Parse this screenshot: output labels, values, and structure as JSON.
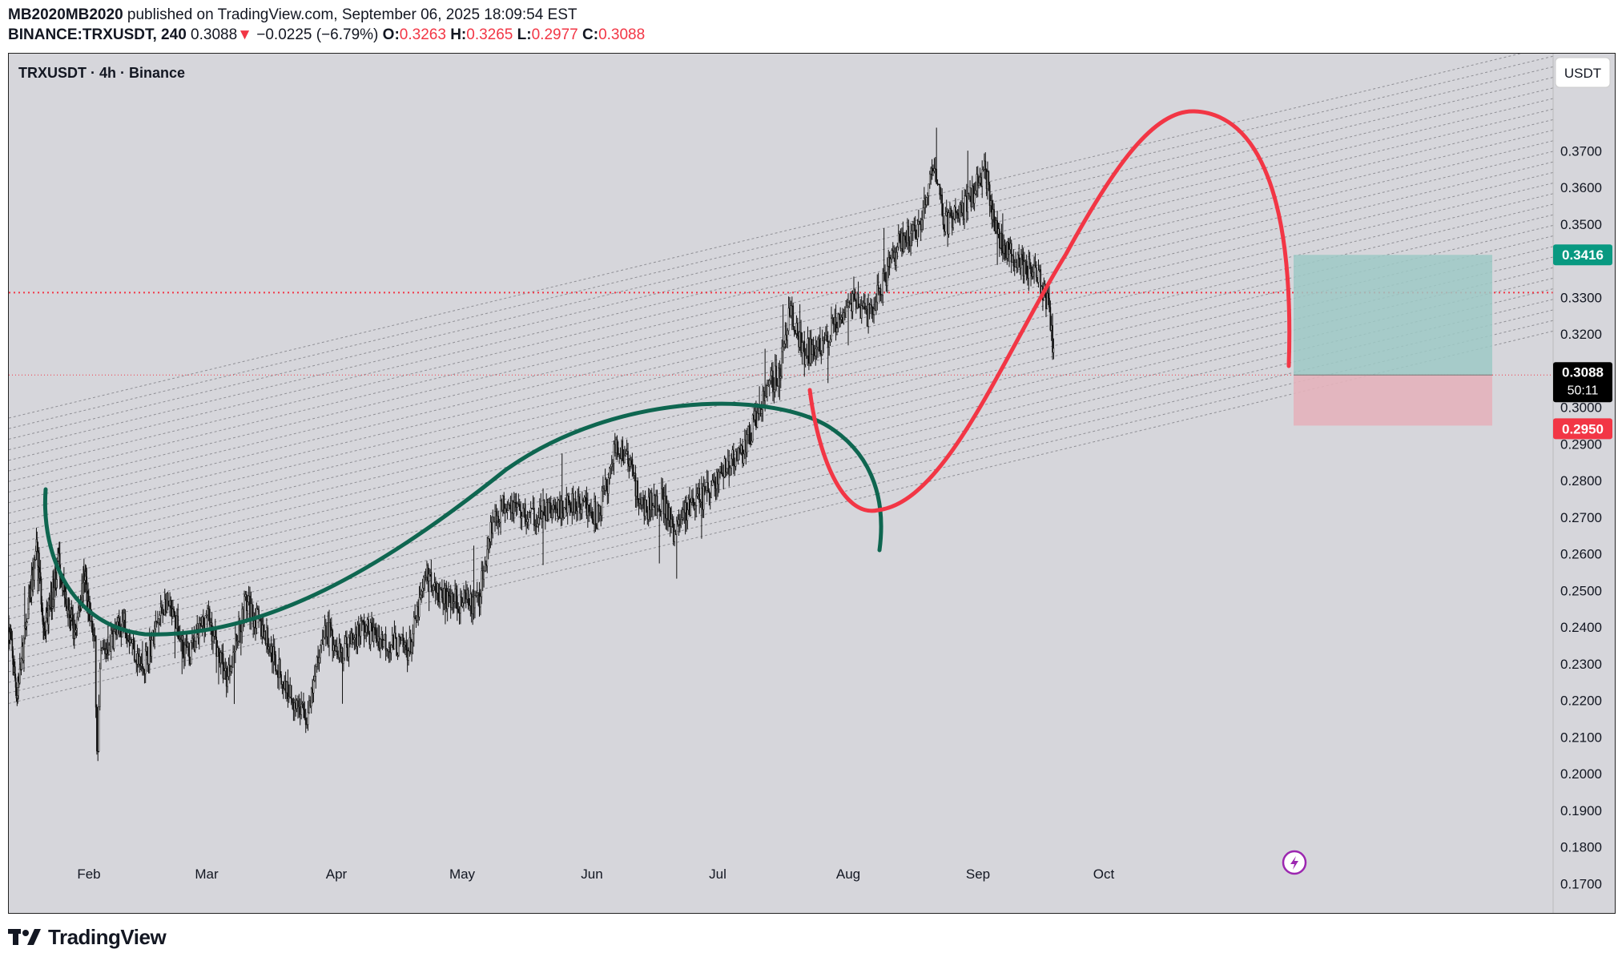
{
  "header": {
    "publisher": "MB2020MB2020",
    "published_text": "published on TradingView.com, September 06, 2025 18:09:54 EST",
    "symbol": "BINANCE:TRXUSDT, 240",
    "last": "0.3088",
    "change": "−0.0225 (−6.79%)",
    "o_label": "O:",
    "o_value": "0.3263",
    "h_label": "H:",
    "h_value": "0.3265",
    "l_label": "L:",
    "l_value": "0.2977",
    "c_label": "C:",
    "c_value": "0.3088",
    "down_glyph": "▼"
  },
  "legend": {
    "title": "TRXUSDT · 4h · Binance"
  },
  "currency_button": "USDT",
  "price_tags": {
    "target": "0.3416",
    "current": "0.3088",
    "countdown": "50:11",
    "stop": "0.2950"
  },
  "colors": {
    "background": "#d6d6db",
    "candles": "#111111",
    "channel": "#8f8f95",
    "green_curve": "#0e6650",
    "red_curve": "#f23645",
    "target_zone": "#9ec9c5",
    "stop_zone": "#e4b3bb",
    "tag_green": "#089981",
    "tag_red": "#f23645",
    "tag_black": "#000000",
    "lightning_badge": "#9c27b0"
  },
  "icons": {
    "brand": "tradingview-logo-icon",
    "alert": "lightning-icon"
  },
  "footer": {
    "brand": "TradingView"
  },
  "chart_data": {
    "type": "candlestick",
    "title": "TRXUSDT · 4h · Binance",
    "quote_currency": "USDT",
    "x_axis": {
      "tick_labels": [
        "Feb",
        "Mar",
        "Apr",
        "May",
        "Jun",
        "Jul",
        "Aug",
        "Sep",
        "Oct"
      ]
    },
    "y_axis": {
      "range": [
        0.162,
        0.3965
      ],
      "position": "right",
      "tick_labels": [
        "0.3700",
        "0.3600",
        "0.3500",
        "0.3400",
        "0.3300",
        "0.3200",
        "0.3100",
        "0.3000",
        "0.2900",
        "0.2800",
        "0.2700",
        "0.2600",
        "0.2500",
        "0.2400",
        "0.2300",
        "0.2200",
        "0.2100",
        "0.2000",
        "0.1900",
        "0.1800",
        "0.1700"
      ],
      "hidden_ticks": [
        "0.3400",
        "0.3100"
      ]
    },
    "price_anchors": [
      {
        "month": 0.0,
        "price": 0.24
      },
      {
        "month": 0.1,
        "price": 0.222
      },
      {
        "month": 0.25,
        "price": 0.245
      },
      {
        "month": 0.35,
        "price": 0.262
      },
      {
        "month": 0.45,
        "price": 0.238
      },
      {
        "month": 0.62,
        "price": 0.258
      },
      {
        "month": 0.82,
        "price": 0.238
      },
      {
        "month": 0.95,
        "price": 0.255
      },
      {
        "month": 1.05,
        "price": 0.235
      },
      {
        "month": 1.07,
        "price": 0.201
      },
      {
        "month": 1.1,
        "price": 0.232
      },
      {
        "month": 1.3,
        "price": 0.242
      },
      {
        "month": 1.45,
        "price": 0.228
      },
      {
        "month": 1.65,
        "price": 0.247
      },
      {
        "month": 1.85,
        "price": 0.232
      },
      {
        "month": 2.0,
        "price": 0.244
      },
      {
        "month": 2.15,
        "price": 0.226
      },
      {
        "month": 2.3,
        "price": 0.247
      },
      {
        "month": 2.45,
        "price": 0.238
      },
      {
        "month": 2.6,
        "price": 0.224
      },
      {
        "month": 2.78,
        "price": 0.215
      },
      {
        "month": 2.9,
        "price": 0.24
      },
      {
        "month": 3.05,
        "price": 0.233
      },
      {
        "month": 3.2,
        "price": 0.24
      },
      {
        "month": 3.4,
        "price": 0.236
      },
      {
        "month": 3.58,
        "price": 0.234
      },
      {
        "month": 3.72,
        "price": 0.255
      },
      {
        "month": 3.85,
        "price": 0.248
      },
      {
        "month": 4.0,
        "price": 0.247
      },
      {
        "month": 4.12,
        "price": 0.246
      },
      {
        "month": 4.22,
        "price": 0.268
      },
      {
        "month": 4.35,
        "price": 0.275
      },
      {
        "month": 4.5,
        "price": 0.27
      },
      {
        "month": 4.7,
        "price": 0.272
      },
      {
        "month": 4.88,
        "price": 0.275
      },
      {
        "month": 5.05,
        "price": 0.27
      },
      {
        "month": 5.2,
        "price": 0.29
      },
      {
        "month": 5.3,
        "price": 0.285
      },
      {
        "month": 5.4,
        "price": 0.272
      },
      {
        "month": 5.55,
        "price": 0.275
      },
      {
        "month": 5.65,
        "price": 0.266
      },
      {
        "month": 5.75,
        "price": 0.272
      },
      {
        "month": 5.9,
        "price": 0.276
      },
      {
        "month": 6.05,
        "price": 0.283
      },
      {
        "month": 6.2,
        "price": 0.288
      },
      {
        "month": 6.35,
        "price": 0.303
      },
      {
        "month": 6.48,
        "price": 0.31
      },
      {
        "month": 6.56,
        "price": 0.328
      },
      {
        "month": 6.65,
        "price": 0.315
      },
      {
        "month": 6.8,
        "price": 0.316
      },
      {
        "month": 6.92,
        "price": 0.325
      },
      {
        "month": 7.05,
        "price": 0.33
      },
      {
        "month": 7.15,
        "price": 0.325
      },
      {
        "month": 7.28,
        "price": 0.335
      },
      {
        "month": 7.4,
        "price": 0.345
      },
      {
        "month": 7.55,
        "price": 0.349
      },
      {
        "month": 7.65,
        "price": 0.365
      },
      {
        "month": 7.75,
        "price": 0.35
      },
      {
        "month": 7.88,
        "price": 0.354
      },
      {
        "month": 7.98,
        "price": 0.36
      },
      {
        "month": 8.05,
        "price": 0.366
      },
      {
        "month": 8.15,
        "price": 0.347
      },
      {
        "month": 8.28,
        "price": 0.34
      },
      {
        "month": 8.4,
        "price": 0.338
      },
      {
        "month": 8.5,
        "price": 0.334
      },
      {
        "month": 8.57,
        "price": 0.326
      },
      {
        "month": 8.61,
        "price": 0.309
      }
    ],
    "horizontal_lines": [
      {
        "price": 0.3313,
        "style": "dotted",
        "color": "#f23645"
      },
      {
        "price": 0.3088,
        "style": "dotted",
        "color": "#f23645"
      }
    ],
    "parallel_channel": {
      "line_count": 28,
      "style": "dashed"
    },
    "position_tool": {
      "type": "long",
      "entry": 0.3088,
      "target": 0.3416,
      "stop": 0.295
    },
    "annotations": [
      {
        "type": "curve",
        "color": "#0e6650",
        "description": "green drawn arc"
      },
      {
        "type": "curve",
        "color": "#f23645",
        "description": "red drawn arc"
      }
    ]
  }
}
